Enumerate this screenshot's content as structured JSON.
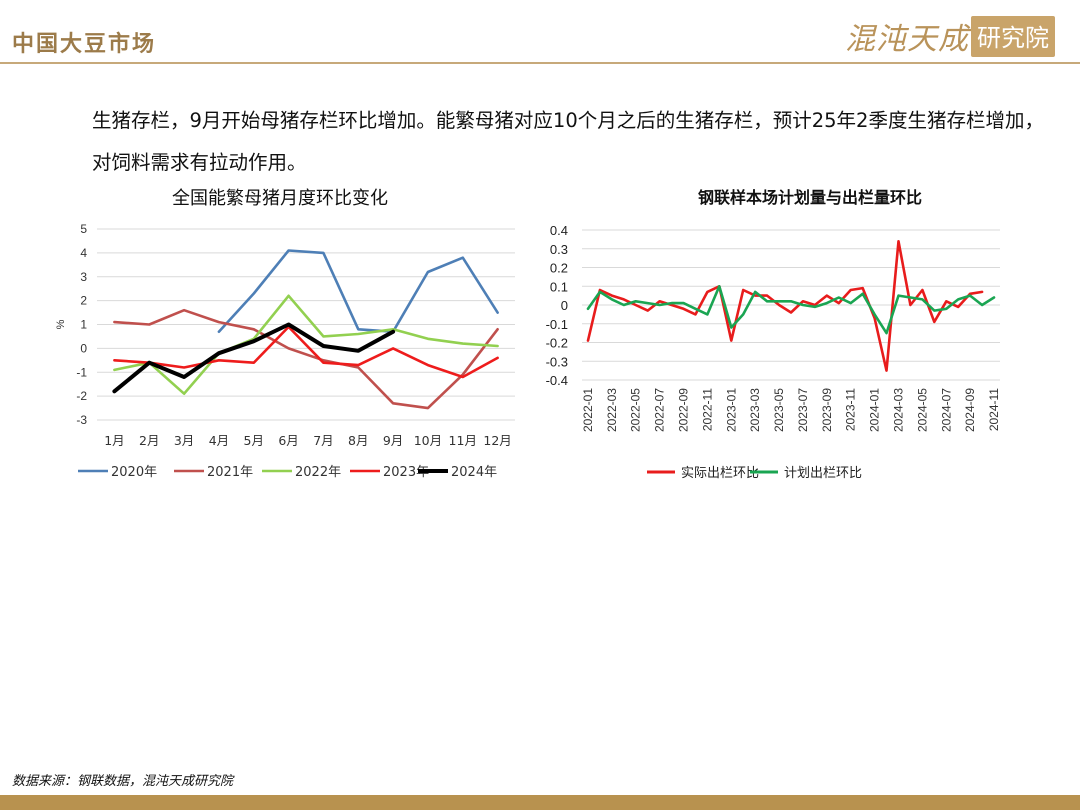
{
  "header": {
    "title": "中国大豆市场",
    "logo_main": "混沌天成",
    "logo_box": "研究院"
  },
  "body_text": "生猪存栏，9月开始母猪存栏环比增加。能繁母猪对应10个月之后的生猪存栏，预计25年2季度生猪存栏增加，对饲料需求有拉动作用。",
  "footer": {
    "source": "数据来源：钢联数据，混沌天成研究院"
  },
  "chart_data": [
    {
      "type": "line",
      "title": "全国能繁母猪月度环比变化",
      "ylabel": "%",
      "xlabel": "",
      "categories": [
        "1月",
        "2月",
        "3月",
        "4月",
        "5月",
        "6月",
        "7月",
        "8月",
        "9月",
        "10月",
        "11月",
        "12月"
      ],
      "ylim": [
        -3,
        5
      ],
      "yticks": [
        -3,
        -2,
        -1,
        0,
        1,
        2,
        3,
        4,
        5
      ],
      "grid": true,
      "legend": "bottom",
      "series": [
        {
          "name": "2020年",
          "color": "#4e7fb6",
          "values": [
            null,
            null,
            null,
            0.7,
            2.3,
            4.1,
            4.0,
            0.8,
            0.7,
            3.2,
            3.8,
            1.5
          ]
        },
        {
          "name": "2021年",
          "color": "#c0504d",
          "values": [
            1.1,
            1.0,
            1.6,
            1.1,
            0.8,
            0.0,
            -0.5,
            -0.8,
            -2.3,
            -2.5,
            -1.1,
            0.8
          ]
        },
        {
          "name": "2022年",
          "color": "#92d050",
          "values": [
            -0.9,
            -0.6,
            -1.9,
            -0.2,
            0.4,
            2.2,
            0.5,
            0.6,
            0.8,
            0.4,
            0.2,
            0.1
          ]
        },
        {
          "name": "2023年",
          "color": "#ee1c1c",
          "values": [
            -0.5,
            -0.6,
            -0.8,
            -0.5,
            -0.6,
            0.9,
            -0.6,
            -0.7,
            0.0,
            -0.7,
            -1.2,
            -0.4
          ]
        },
        {
          "name": "2024年",
          "color": "#000000",
          "values": [
            -1.8,
            -0.6,
            -1.2,
            -0.2,
            0.3,
            1.0,
            0.1,
            -0.1,
            0.7,
            null,
            null,
            null
          ]
        }
      ]
    },
    {
      "type": "line",
      "title": "钢联样本场计划量与出栏量环比",
      "xlabel": "",
      "ylabel": "",
      "x": [
        "2022-01",
        "2022-02",
        "2022-03",
        "2022-04",
        "2022-05",
        "2022-06",
        "2022-07",
        "2022-08",
        "2022-09",
        "2022-10",
        "2022-11",
        "2022-12",
        "2023-01",
        "2023-02",
        "2023-03",
        "2023-04",
        "2023-05",
        "2023-06",
        "2023-07",
        "2023-08",
        "2023-09",
        "2023-10",
        "2023-11",
        "2023-12",
        "2024-01",
        "2024-02",
        "2024-03",
        "2024-04",
        "2024-05",
        "2024-06",
        "2024-07",
        "2024-08",
        "2024-09",
        "2024-10",
        "2024-11"
      ],
      "xtick_labels": [
        "2022-01",
        "2022-03",
        "2022-05",
        "2022-07",
        "2022-09",
        "2022-11",
        "2023-01",
        "2023-03",
        "2023-05",
        "2023-07",
        "2023-09",
        "2023-11",
        "2024-01",
        "2024-03",
        "2024-05",
        "2024-07",
        "2024-09",
        "2024-11"
      ],
      "ylim": [
        -0.4,
        0.4
      ],
      "yticks": [
        -0.4,
        -0.3,
        -0.2,
        -0.1,
        0,
        0.1,
        0.2,
        0.3,
        0.4
      ],
      "grid": true,
      "legend": "bottom",
      "series": [
        {
          "name": "实际出栏环比",
          "color": "#e81c1c",
          "values": [
            -0.19,
            0.08,
            0.05,
            0.03,
            0.0,
            -0.03,
            0.02,
            0.0,
            -0.02,
            -0.05,
            0.07,
            0.1,
            -0.19,
            0.08,
            0.05,
            0.05,
            0.0,
            -0.04,
            0.02,
            0.0,
            0.05,
            0.01,
            0.08,
            0.09,
            -0.07,
            -0.35,
            0.34,
            0.0,
            0.08,
            -0.09,
            0.02,
            -0.01,
            0.06,
            0.07,
            null
          ]
        },
        {
          "name": "计划出栏环比",
          "color": "#1aa552",
          "values": [
            -0.02,
            0.07,
            0.03,
            0.0,
            0.02,
            0.01,
            0.0,
            0.01,
            0.01,
            -0.02,
            -0.05,
            0.1,
            -0.12,
            -0.05,
            0.07,
            0.02,
            0.02,
            0.02,
            0.0,
            -0.01,
            0.01,
            0.04,
            0.01,
            0.06,
            -0.05,
            -0.15,
            0.05,
            0.04,
            0.03,
            -0.03,
            -0.02,
            0.03,
            0.05,
            0.0,
            0.04
          ]
        }
      ]
    }
  ]
}
